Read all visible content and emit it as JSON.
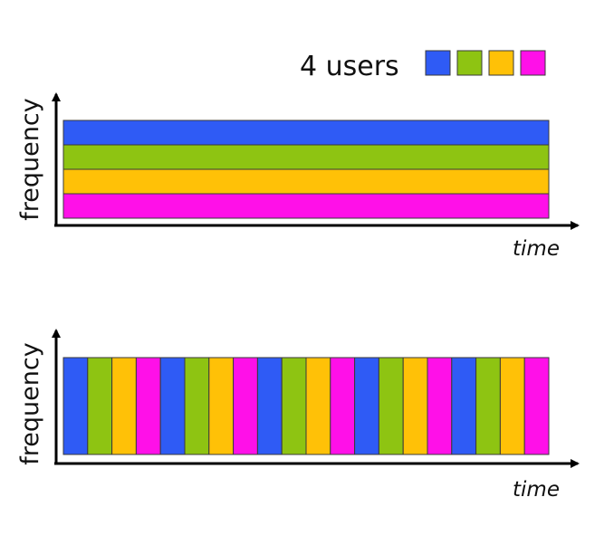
{
  "legend": {
    "title": "4 users",
    "users": [
      {
        "color": "#2f5bf5"
      },
      {
        "color": "#8ec412"
      },
      {
        "color": "#ffc107"
      },
      {
        "color": "#ff10e8"
      }
    ]
  },
  "fdma": {
    "ylabel": "frequency",
    "xlabel": "time"
  },
  "tdma": {
    "ylabel": "frequency",
    "xlabel": "time",
    "slot_cycles": 5
  }
}
